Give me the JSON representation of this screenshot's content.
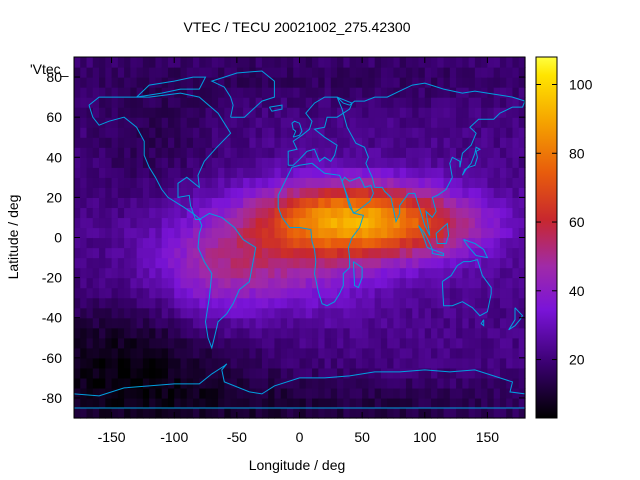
{
  "chart_data": {
    "type": "heatmap",
    "title": "VTEC / TECU 20021002_275.42300",
    "xlabel": "Longitude / deg",
    "ylabel": "Latitude / deg",
    "legend_label": "'Vtec_",
    "xlim": [
      -180,
      180
    ],
    "ylim": [
      -90,
      90
    ],
    "x_ticks": [
      -150,
      -100,
      -50,
      0,
      50,
      100,
      150
    ],
    "y_ticks": [
      -80,
      -60,
      -40,
      -20,
      0,
      20,
      40,
      60,
      80
    ],
    "colorbar": {
      "range": [
        3,
        108
      ],
      "ticks": [
        20,
        40,
        60,
        80,
        100
      ],
      "palette": [
        "#000000",
        "#3a0070",
        "#7a14d8",
        "#a02aa8",
        "#c8282e",
        "#e85c0c",
        "#f5a300",
        "#ffe500",
        "#ffff40"
      ]
    },
    "grid_step_deg": 5,
    "value_peak": {
      "lon": 30,
      "lat": 15,
      "value": 105
    },
    "coastline_color": "#00a0e0"
  }
}
